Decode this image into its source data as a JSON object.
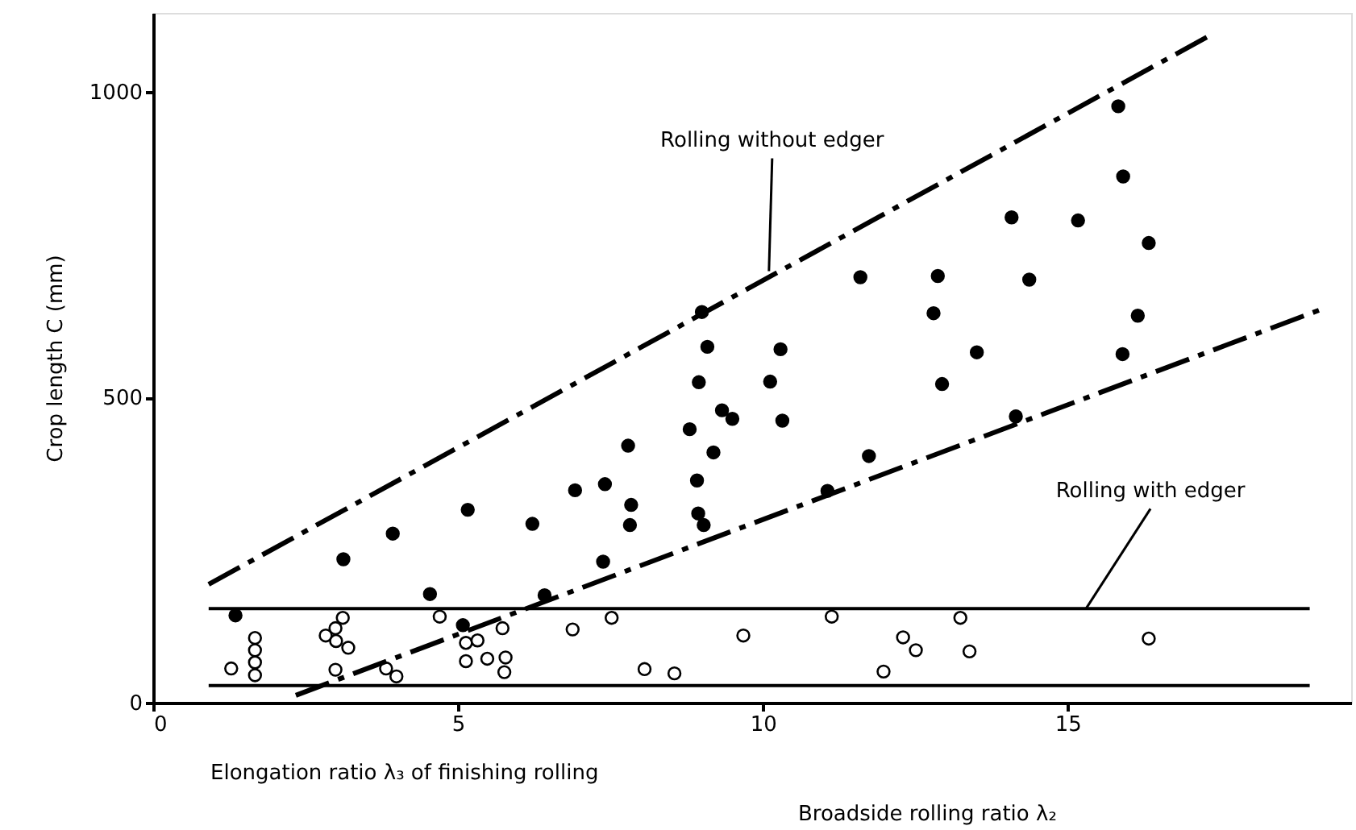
{
  "chart_data": {
    "type": "scatter",
    "xlabel": "Elongation ratio λ₃ of finishing rolling",
    "ylabel": "Crop length C (mm)",
    "xlim": [
      0,
      19.65
    ],
    "ylim": [
      0,
      1130
    ],
    "xticks": [
      0,
      5,
      10,
      15
    ],
    "yticks": [
      0,
      500,
      1000
    ],
    "grid": false,
    "series": [
      {
        "color": "#000000",
        "marker": "circle",
        "x": [
          1.35,
          3.12,
          3.93,
          4.54,
          5.16,
          5.08,
          6.22,
          6.42,
          6.92,
          7.41,
          7.38,
          7.79,
          7.84,
          7.82,
          8.8,
          9.0,
          9.09,
          8.95,
          9.33,
          9.5,
          9.19,
          8.92,
          8.94,
          9.03,
          10.29,
          10.12,
          10.32,
          11.06,
          11.6,
          11.74,
          12.87,
          12.8,
          13.51,
          12.94,
          14.08,
          15.17,
          14.37,
          14.15,
          15.83,
          15.91,
          16.33,
          16.15,
          15.9
        ],
        "values": [
          143,
          235,
          277,
          178,
          316,
          127,
          293,
          176,
          348,
          358,
          231,
          421,
          324,
          291,
          448,
          640,
          583,
          525,
          479,
          465,
          410,
          364,
          310,
          291,
          579,
          526,
          462,
          347,
          697,
          404,
          699,
          638,
          574,
          522,
          795,
          790,
          693,
          469,
          977,
          862,
          753,
          634,
          571
        ]
      },
      {
        "color": "#ffffff",
        "marker": "circle",
        "x": [
          1.28,
          1.67,
          1.67,
          1.67,
          1.67,
          2.83,
          2.99,
          3.11,
          3.0,
          3.2,
          2.99,
          4.7,
          3.82,
          3.99,
          5.13,
          5.32,
          5.13,
          5.48,
          5.73,
          5.78,
          5.76,
          6.88,
          7.52,
          8.06,
          8.55,
          9.68,
          11.13,
          12.3,
          12.51,
          11.98,
          13.24,
          13.39,
          16.33
        ],
        "values": [
          56,
          106,
          86,
          66,
          45,
          110,
          122,
          139,
          101,
          90,
          54,
          141,
          56,
          43,
          98,
          102,
          68,
          72,
          122,
          74,
          50,
          120,
          139,
          55,
          48,
          110,
          141,
          107,
          86,
          51,
          139,
          84,
          105
        ]
      },
      {
        "type": "line",
        "color": "#000000",
        "line_style": "dashed",
        "x": [
          0.91,
          17.35
        ],
        "values": [
          194,
          1094
        ]
      },
      {
        "type": "line",
        "color": "#000000",
        "line_style": "dashed",
        "x": [
          2.34,
          19.15
        ],
        "values": [
          12,
          644
        ]
      },
      {
        "type": "line",
        "color": "#000000",
        "line_style": "solid",
        "x": [
          0.91,
          18.97
        ],
        "values": [
          154,
          154
        ]
      },
      {
        "type": "line",
        "color": "#000000",
        "line_style": "solid",
        "x": [
          0.91,
          18.97
        ],
        "values": [
          28,
          28
        ]
      }
    ],
    "annotations": [
      {
        "text": "Rolling without edger",
        "x": 10.1,
        "y": 707
      },
      {
        "text": "Rolling with edger",
        "x": 15.3,
        "y": 154
      },
      "Broadside rolling ratio λ₂"
    ]
  }
}
